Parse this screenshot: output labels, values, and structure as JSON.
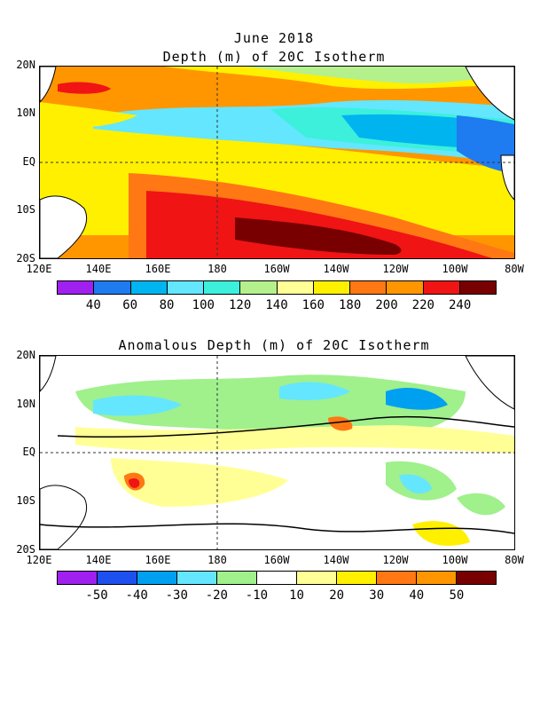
{
  "top_title": {
    "line1": "June 2018",
    "line2": "Depth (m) of 20C Isotherm"
  },
  "bottom_title": "Anomalous Depth (m) of 20C Isotherm",
  "lat_labels": [
    "20N",
    "10N",
    "EQ",
    "10S",
    "20S"
  ],
  "lon_labels": [
    "120E",
    "140E",
    "160E",
    "180",
    "160W",
    "140W",
    "120W",
    "100W",
    "80W"
  ],
  "top_colorbar": {
    "labels": [
      "40",
      "60",
      "80",
      "100",
      "120",
      "140",
      "160",
      "180",
      "200",
      "220",
      "240"
    ],
    "colors": [
      "#a020f0",
      "#1e7bf0",
      "#00b4f0",
      "#64e6ff",
      "#3cf0dc",
      "#b4f08c",
      "#ffff96",
      "#fff000",
      "#ff7814",
      "#ff9600",
      "#f01414",
      "#780000"
    ]
  },
  "bottom_colorbar": {
    "labels": [
      "-50",
      "-40",
      "-30",
      "-20",
      "-10",
      "10",
      "20",
      "30",
      "40",
      "50"
    ],
    "colors": [
      "#a020f0",
      "#1e50f0",
      "#00a0f0",
      "#64e6ff",
      "#a0f08c",
      "#ffffff",
      "#ffff96",
      "#fff000",
      "#ff7814",
      "#ff9600",
      "#780000"
    ]
  }
}
